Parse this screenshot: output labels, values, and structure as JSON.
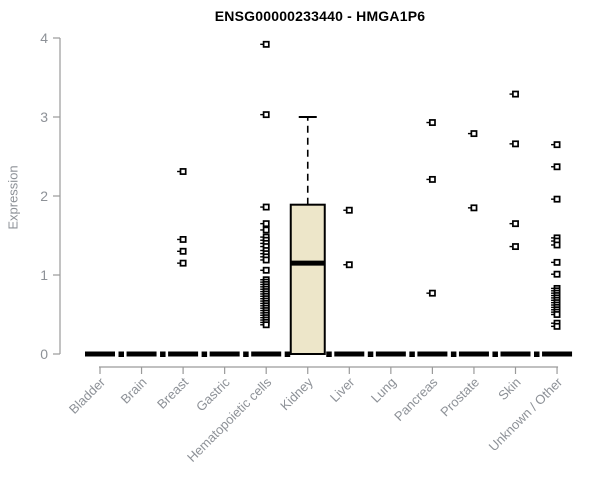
{
  "chart_data": {
    "type": "boxplot",
    "title": "ENSG00000233440 - HMGA1P6",
    "ylabel": "Expression",
    "xlabel": "",
    "ylim": [
      0,
      4
    ],
    "yticks": [
      0,
      1,
      2,
      3,
      4
    ],
    "grid": false,
    "legend": "none",
    "categories": [
      "Bladder",
      "Brain",
      "Breast",
      "Gastric",
      "Hematopoietic cells",
      "Kidney",
      "Liver",
      "Lung",
      "Pancreas",
      "Prostate",
      "Skin",
      "Unknown / Other"
    ],
    "boxes": [
      {
        "category": "Bladder",
        "median": 0,
        "q1": 0,
        "q3": 0,
        "whisker_low": 0,
        "whisker_high": 0,
        "outliers": [],
        "zero_marker": true
      },
      {
        "category": "Brain",
        "median": 0,
        "q1": 0,
        "q3": 0,
        "whisker_low": 0,
        "whisker_high": 0,
        "outliers": [],
        "zero_marker": true
      },
      {
        "category": "Breast",
        "median": 0,
        "q1": 0,
        "q3": 0,
        "whisker_low": 0,
        "whisker_high": 0,
        "outliers": [
          2.31,
          1.45,
          1.3,
          1.15
        ],
        "zero_marker": true
      },
      {
        "category": "Gastric",
        "median": 0,
        "q1": 0,
        "q3": 0,
        "whisker_low": 0,
        "whisker_high": 0,
        "outliers": [],
        "zero_marker": true
      },
      {
        "category": "Hematopoietic cells",
        "median": 0,
        "q1": 0,
        "q3": 0,
        "whisker_low": 0,
        "whisker_high": 0,
        "outliers": [
          3.92,
          3.03,
          1.86,
          1.65,
          1.57,
          1.48,
          1.44,
          1.4,
          1.36,
          1.31,
          1.27,
          1.23,
          1.19,
          1.06,
          0.94,
          0.91,
          0.88,
          0.85,
          0.82,
          0.79,
          0.76,
          0.73,
          0.7,
          0.67,
          0.64,
          0.61,
          0.58,
          0.55,
          0.52,
          0.49,
          0.46,
          0.43,
          0.4,
          0.37
        ],
        "zero_marker": true
      },
      {
        "category": "Kidney",
        "median": 1.15,
        "q1": 0,
        "q3": 1.89,
        "whisker_low": 0,
        "whisker_high": 3.0,
        "outliers": [],
        "zero_marker": true
      },
      {
        "category": "Liver",
        "median": 0,
        "q1": 0,
        "q3": 0,
        "whisker_low": 0,
        "whisker_high": 0,
        "outliers": [
          1.82,
          1.13
        ],
        "zero_marker": true
      },
      {
        "category": "Lung",
        "median": 0,
        "q1": 0,
        "q3": 0,
        "whisker_low": 0,
        "whisker_high": 0,
        "outliers": [],
        "zero_marker": true
      },
      {
        "category": "Pancreas",
        "median": 0,
        "q1": 0,
        "q3": 0,
        "whisker_low": 0,
        "whisker_high": 0,
        "outliers": [
          2.93,
          2.21,
          0.77
        ],
        "zero_marker": true
      },
      {
        "category": "Prostate",
        "median": 0,
        "q1": 0,
        "q3": 0,
        "whisker_low": 0,
        "whisker_high": 0,
        "outliers": [
          2.79,
          1.85
        ],
        "zero_marker": true
      },
      {
        "category": "Skin",
        "median": 0,
        "q1": 0,
        "q3": 0,
        "whisker_low": 0,
        "whisker_high": 0,
        "outliers": [
          3.29,
          2.66,
          1.65,
          1.36
        ],
        "zero_marker": true
      },
      {
        "category": "Unknown / Other",
        "median": 0,
        "q1": 0,
        "q3": 0,
        "whisker_low": 0,
        "whisker_high": 0,
        "outliers": [
          2.65,
          2.37,
          1.96,
          1.47,
          1.43,
          1.38,
          1.16,
          1.01,
          0.83,
          0.8,
          0.77,
          0.74,
          0.71,
          0.68,
          0.65,
          0.62,
          0.59,
          0.56,
          0.53,
          0.5,
          0.39,
          0.35
        ],
        "zero_marker": false
      }
    ],
    "colors": {
      "box_fill": "#ede6c9",
      "box_border": "#000000",
      "median": "#000000",
      "whisker": "#000000",
      "outlier_border": "#000000",
      "outlier_fill": "#ffffff",
      "zero_bar": "#000000",
      "axis_line": "#9a9a9a",
      "tick_label": "#8d9197",
      "title": "#000000"
    }
  }
}
